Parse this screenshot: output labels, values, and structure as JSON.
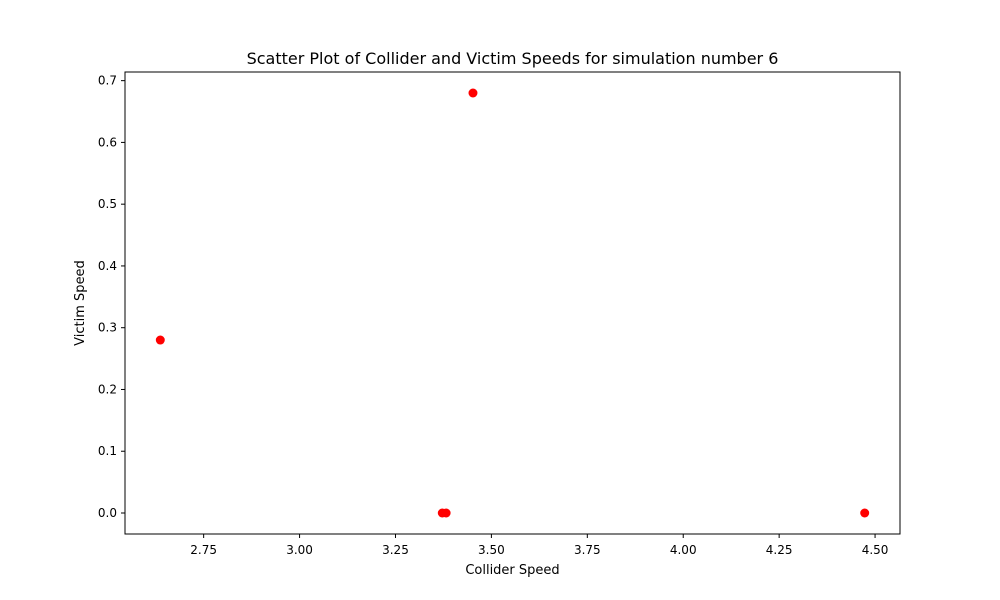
{
  "chart_data": {
    "type": "scatter",
    "title": "Scatter Plot of Collider and Victim Speeds for simulation number 6",
    "xlabel": "Collider Speed",
    "ylabel": "Victim Speed",
    "xlim": [
      2.545,
      4.565
    ],
    "ylim": [
      -0.034,
      0.714
    ],
    "xticks": [
      2.75,
      3.0,
      3.25,
      3.5,
      3.75,
      4.0,
      4.25,
      4.5
    ],
    "xtick_labels": [
      "2.75",
      "3.00",
      "3.25",
      "3.50",
      "3.75",
      "4.00",
      "4.25",
      "4.50"
    ],
    "yticks": [
      0.0,
      0.1,
      0.2,
      0.3,
      0.4,
      0.5,
      0.6,
      0.7
    ],
    "ytick_labels": [
      "0.0",
      "0.1",
      "0.2",
      "0.3",
      "0.4",
      "0.5",
      "0.6",
      "0.7"
    ],
    "grid": false,
    "point_color": "#ff0000",
    "points": [
      {
        "x": 2.637,
        "y": 0.28
      },
      {
        "x": 3.452,
        "y": 0.68
      },
      {
        "x": 3.372,
        "y": 0.0
      },
      {
        "x": 3.382,
        "y": 0.0
      },
      {
        "x": 4.473,
        "y": 0.0
      }
    ]
  }
}
